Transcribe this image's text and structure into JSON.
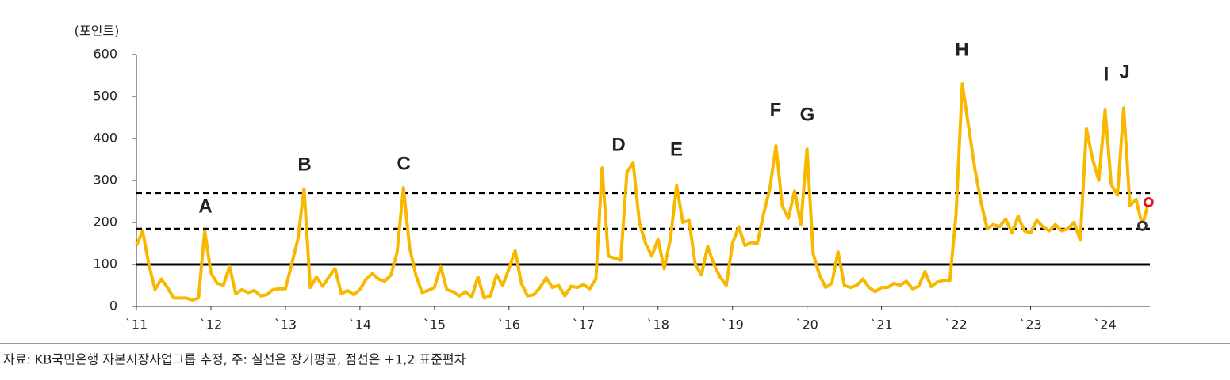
{
  "chart_data": {
    "type": "line",
    "y_label": "(포인트)",
    "source": "자료: KB국민은행 자본시장사업그룹 추정, 주: 실선은 장기평균, 점선은 +1,2 표준편차",
    "annotations": [
      "A",
      "B",
      "C",
      "D",
      "E",
      "F",
      "G",
      "H",
      "I",
      "J"
    ],
    "categories": [
      "`11",
      null,
      null,
      null,
      null,
      null,
      null,
      null,
      null,
      null,
      null,
      null,
      "`12",
      null,
      null,
      null,
      null,
      null,
      null,
      null,
      null,
      null,
      null,
      null,
      "`13",
      null,
      null,
      null,
      null,
      null,
      null,
      null,
      null,
      null,
      null,
      null,
      "`14",
      null,
      null,
      null,
      null,
      null,
      null,
      null,
      null,
      null,
      null,
      null,
      "`15",
      null,
      null,
      null,
      null,
      null,
      null,
      null,
      null,
      null,
      null,
      null,
      "`16",
      null,
      null,
      null,
      null,
      null,
      null,
      null,
      null,
      null,
      null,
      null,
      "`17",
      null,
      null,
      null,
      null,
      null,
      null,
      null,
      null,
      null,
      null,
      null,
      "`18",
      null,
      null,
      null,
      null,
      null,
      null,
      null,
      null,
      null,
      null,
      null,
      "`19",
      null,
      null,
      null,
      null,
      null,
      null,
      null,
      null,
      null,
      null,
      null,
      "`20",
      null,
      null,
      null,
      null,
      null,
      null,
      null,
      null,
      null,
      null,
      null,
      "`21",
      null,
      null,
      null,
      null,
      null,
      null,
      null,
      null,
      null,
      null,
      null,
      "`22",
      null,
      null,
      null,
      null,
      null,
      null,
      null,
      null,
      null,
      null,
      null,
      "`23",
      null,
      null,
      null,
      null,
      null,
      null,
      null,
      null,
      null,
      null,
      null,
      "`24",
      null,
      null,
      null,
      null,
      null,
      null,
      null
    ],
    "series": [
      {
        "color": "#f8b800",
        "values": [
          145,
          180,
          100,
          40,
          65,
          45,
          20,
          20,
          20,
          15,
          20,
          180,
          80,
          55,
          50,
          95,
          30,
          40,
          33,
          38,
          25,
          28,
          40,
          42,
          42,
          100,
          160,
          280,
          45,
          70,
          48,
          70,
          90,
          30,
          38,
          28,
          40,
          65,
          78,
          65,
          60,
          75,
          130,
          283,
          140,
          75,
          33,
          38,
          45,
          95,
          40,
          35,
          25,
          35,
          22,
          70,
          20,
          25,
          75,
          50,
          90,
          133,
          55,
          25,
          28,
          45,
          68,
          45,
          50,
          25,
          48,
          45,
          52,
          42,
          65,
          330,
          120,
          115,
          110,
          320,
          342,
          200,
          150,
          120,
          160,
          90,
          160,
          288,
          200,
          205,
          100,
          75,
          143,
          100,
          70,
          50,
          150,
          190,
          145,
          152,
          150,
          220,
          280,
          383,
          240,
          210,
          275,
          195,
          375,
          125,
          75,
          45,
          55,
          130,
          50,
          45,
          50,
          65,
          45,
          35,
          45,
          45,
          55,
          50,
          60,
          42,
          48,
          83,
          47,
          58,
          62,
          62,
          220,
          530,
          430,
          330,
          250,
          185,
          195,
          190,
          208,
          175,
          215,
          180,
          175,
          205,
          190,
          180,
          195,
          180,
          185,
          200,
          158,
          423,
          350,
          300,
          468,
          290,
          265,
          473,
          240,
          255,
          192,
          248
        ]
      }
    ],
    "end_markers": [
      "#333333",
      "#e8141c"
    ],
    "reference_lines": [
      {
        "value": 100,
        "style": "solid"
      },
      {
        "value": 270,
        "style": "dashed"
      },
      {
        "value": 185,
        "style": "dashed"
      }
    ],
    "ylim": [
      0,
      600
    ],
    "yticks": [
      0,
      100,
      200,
      300,
      400,
      500,
      600
    ]
  }
}
